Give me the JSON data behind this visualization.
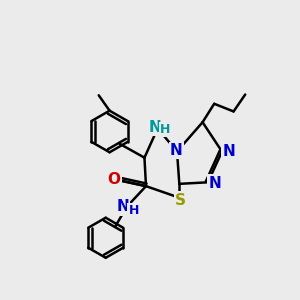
{
  "background_color": "#ebebeb",
  "bond_color": "#000000",
  "bond_width": 1.8,
  "fig_width": 3.0,
  "fig_height": 3.0,
  "dpi": 100,
  "colors": {
    "N": "#0000cc",
    "S": "#999900",
    "O": "#cc0000",
    "NH_ring": "#009999",
    "C": "#000000"
  }
}
